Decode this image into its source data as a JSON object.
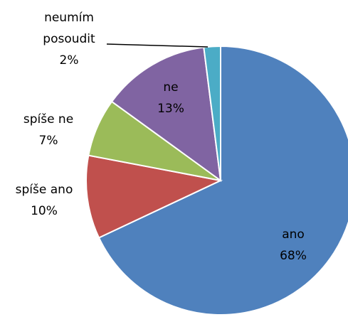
{
  "chart_data": {
    "type": "pie",
    "categories": [
      "ano",
      "spíše ano",
      "spíše ne",
      "ne",
      "neumím posoudit"
    ],
    "values": [
      68,
      10,
      7,
      13,
      2
    ],
    "value_labels": [
      "68%",
      "10%",
      "7%",
      "13%",
      "2%"
    ],
    "colors": [
      "#4f81bd",
      "#c0504d",
      "#9bbb59",
      "#8064a2",
      "#4bacc6"
    ]
  }
}
